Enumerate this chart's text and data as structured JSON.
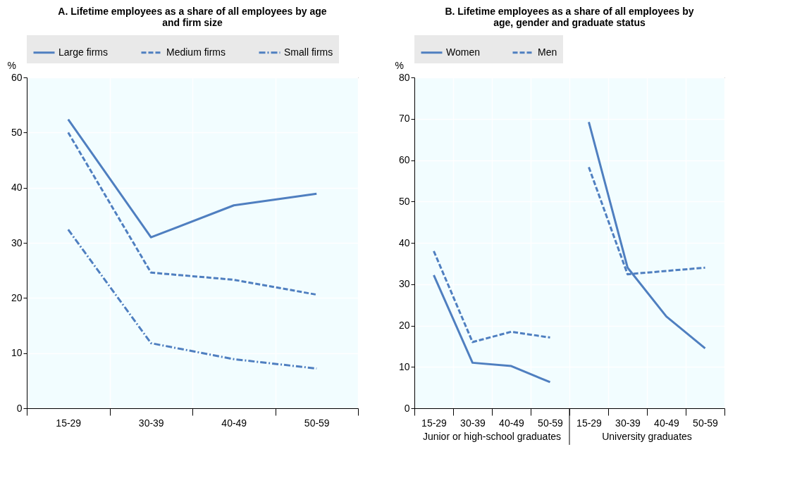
{
  "chart_data": [
    {
      "type": "line",
      "title": "A. Lifetime employees as a share of all employees by age and firm size",
      "ylabel": "%",
      "categories": [
        "15-29",
        "30-39",
        "40-49",
        "50-59"
      ],
      "series": [
        {
          "name": "Large firms",
          "color": "#4f7fc0",
          "line_style": "solid",
          "values": [
            52.4,
            31,
            36.8,
            38.9
          ]
        },
        {
          "name": "Medium firms",
          "color": "#4f7fc0",
          "line_style": "dashed",
          "values": [
            50,
            24.6,
            23.3,
            20.6
          ]
        },
        {
          "name": "Small firms",
          "color": "#4f7fc0",
          "line_style": "dashdot",
          "values": [
            32.4,
            11.8,
            8.9,
            7.2
          ]
        }
      ],
      "ylim": [
        0,
        60
      ],
      "yticks": [
        0,
        10,
        20,
        30,
        40,
        50,
        60
      ],
      "grid": true,
      "legend": "top",
      "marker": "none"
    },
    {
      "type": "line",
      "title": "B. Lifetime employees as a share of all employees by age, gender and graduate status",
      "ylabel": "%",
      "categories": [
        "15-29",
        "30-39",
        "40-49",
        "50-59",
        "15-29",
        "30-39",
        "40-49",
        "50-59"
      ],
      "annotations": [
        "Junior or high-school graduates",
        "University graduates"
      ],
      "series": [
        {
          "name": "Women",
          "color": "#4f7fc0",
          "line_style": "solid",
          "values": [
            32.2,
            11,
            10.2,
            6.3,
            69.2,
            34,
            22.2,
            14.5
          ]
        },
        {
          "name": "Men",
          "color": "#4f7fc0",
          "line_style": "dashed",
          "values": [
            38,
            16,
            18.5,
            17.1,
            58.3,
            32.4,
            33.2,
            34
          ]
        }
      ],
      "ylim": [
        0,
        80
      ],
      "yticks": [
        0,
        10,
        20,
        30,
        40,
        50,
        60,
        70,
        80
      ],
      "grid": true,
      "legend": "top",
      "marker": "none"
    }
  ]
}
